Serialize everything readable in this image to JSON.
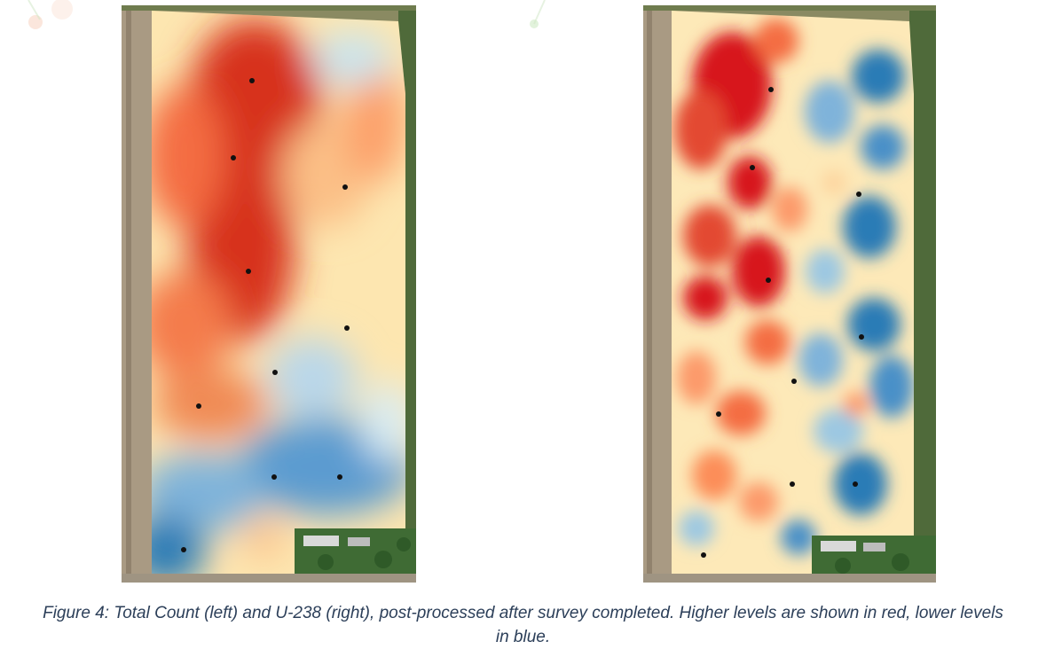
{
  "figure": {
    "caption_line1": "Figure 4: Total Count (left) and U-238 (right), post-processed after survey completed. Higher levels are shown in red, lower levels",
    "caption_line2": "in blue."
  },
  "maps": [
    {
      "id": "left",
      "layer": "Total Count",
      "sample_point_count": 10
    },
    {
      "id": "right",
      "layer": "U-238",
      "sample_point_count": 10
    }
  ],
  "legend": {
    "high_color": "#d7191c",
    "mid_color": "#ffffbf",
    "low_color": "#2c7bb6"
  },
  "colors": {
    "caption_text": "#2c3f59",
    "road": "#c9bfae",
    "vegetation": "#4f6a3a"
  }
}
